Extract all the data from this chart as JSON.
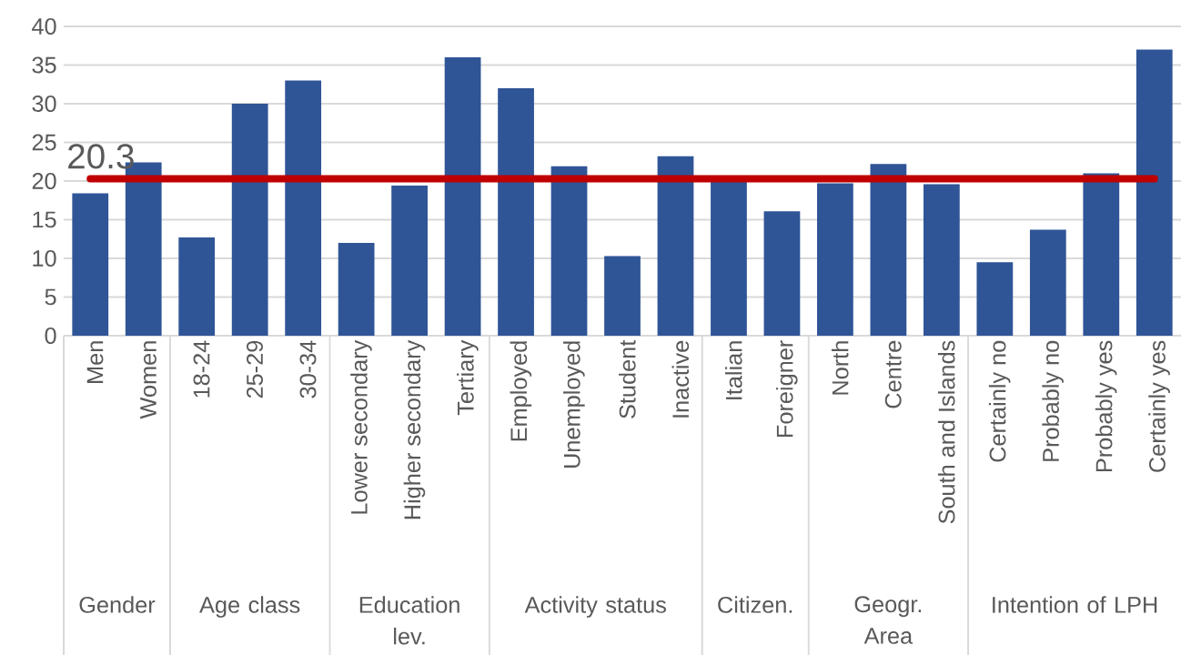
{
  "chart_data": {
    "type": "bar",
    "categories": [
      "Men",
      "Women",
      "18-24",
      "25-29",
      "30-34",
      "Lower secondary",
      "Higher secondary",
      "Tertiary",
      "Employed",
      "Unemployed",
      "Student",
      "Inactive",
      "Italian",
      "Foreigner",
      "North",
      "Centre",
      "South and Islands",
      "Certainly no",
      "Probably no",
      "Probably yes",
      "Certainly yes"
    ],
    "values": [
      18.4,
      22.4,
      12.7,
      30.0,
      33.0,
      12.0,
      19.4,
      36.0,
      32.0,
      21.9,
      10.3,
      23.2,
      20.0,
      16.1,
      19.7,
      22.2,
      19.6,
      9.5,
      13.7,
      21.0,
      37.0
    ],
    "color": "#2f5597",
    "ylim": [
      0,
      40
    ],
    "yticks": [
      0,
      5,
      10,
      15,
      20,
      25,
      30,
      35,
      40
    ],
    "grid": "y",
    "ref_lines": [
      {
        "axis": "y",
        "value": 20.3,
        "label": "20.3",
        "color": "#c00000"
      }
    ],
    "annotations": [
      "Gender",
      "Age class",
      "Education lev.",
      "Activity status",
      "Citizen.",
      "Geogr. Area",
      "Intention of LPH"
    ]
  }
}
